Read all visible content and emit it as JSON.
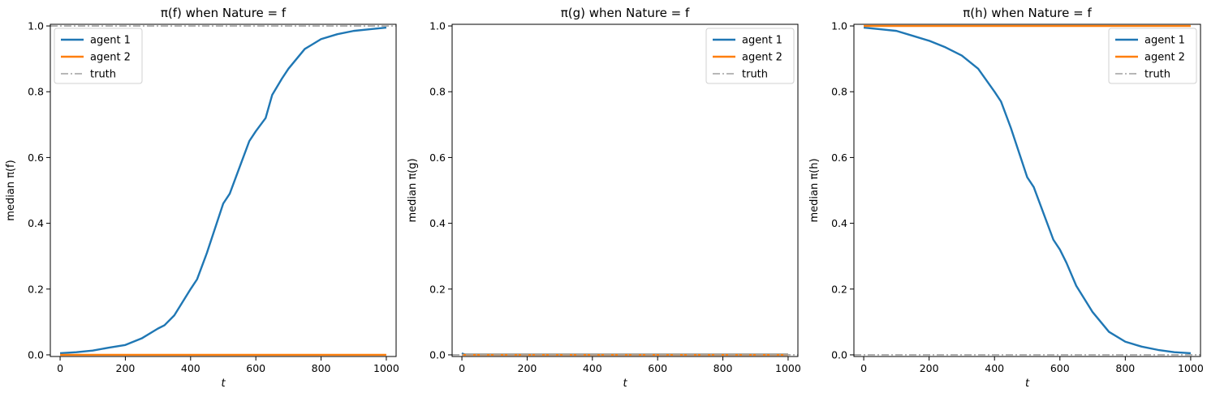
{
  "colors": {
    "agent1": "#1f77b4",
    "agent2": "#ff7f0e",
    "truth": "#a0a0a0"
  },
  "chart_data": [
    {
      "type": "line",
      "title": "π(f) when Nature = f",
      "xlabel": "t",
      "ylabel": "median π(f)",
      "xlim": [
        -30,
        1030
      ],
      "ylim": [
        -0.005,
        1.005
      ],
      "xticks": [
        0,
        200,
        400,
        600,
        800,
        1000
      ],
      "yticks": [
        0.0,
        0.2,
        0.4,
        0.6,
        0.8,
        1.0
      ],
      "legend": "top-left",
      "grid": false,
      "series": [
        {
          "name": "agent 1",
          "style": "solid",
          "x": [
            0,
            50,
            100,
            150,
            200,
            250,
            300,
            320,
            350,
            400,
            420,
            450,
            480,
            500,
            520,
            550,
            580,
            600,
            630,
            650,
            680,
            700,
            750,
            800,
            850,
            900,
            950,
            1000
          ],
          "y": [
            0.005,
            0.008,
            0.013,
            0.022,
            0.03,
            0.05,
            0.08,
            0.09,
            0.12,
            0.2,
            0.23,
            0.31,
            0.4,
            0.46,
            0.49,
            0.57,
            0.65,
            0.68,
            0.72,
            0.79,
            0.84,
            0.87,
            0.93,
            0.96,
            0.975,
            0.985,
            0.99,
            0.995
          ]
        },
        {
          "name": "agent 2",
          "style": "solid",
          "x": [
            0,
            1000
          ],
          "y": [
            0.0,
            0.0
          ]
        },
        {
          "name": "truth",
          "style": "dashdot",
          "value": 1.0
        }
      ]
    },
    {
      "type": "line",
      "title": "π(g) when Nature = f",
      "xlabel": "t",
      "ylabel": "median π(g)",
      "xlim": [
        -30,
        1030
      ],
      "ylim": [
        -0.005,
        1.005
      ],
      "xticks": [
        0,
        200,
        400,
        600,
        800,
        1000
      ],
      "yticks": [
        0.0,
        0.2,
        0.4,
        0.6,
        0.8,
        1.0
      ],
      "legend": "top-right",
      "grid": false,
      "series": [
        {
          "name": "agent 1",
          "style": "solid",
          "x": [
            0,
            5,
            10,
            1000
          ],
          "y": [
            0.005,
            0.002,
            0.001,
            0.001
          ]
        },
        {
          "name": "agent 2",
          "style": "solid",
          "x": [
            0,
            1000
          ],
          "y": [
            0.0,
            0.0
          ]
        },
        {
          "name": "truth",
          "style": "dashdot",
          "value": 0.0
        }
      ]
    },
    {
      "type": "line",
      "title": "π(h) when Nature = f",
      "xlabel": "t",
      "ylabel": "median π(h)",
      "xlim": [
        -30,
        1030
      ],
      "ylim": [
        -0.005,
        1.005
      ],
      "xticks": [
        0,
        200,
        400,
        600,
        800,
        1000
      ],
      "yticks": [
        0.0,
        0.2,
        0.4,
        0.6,
        0.8,
        1.0
      ],
      "legend": "top-right",
      "grid": false,
      "series": [
        {
          "name": "agent 1",
          "style": "solid",
          "x": [
            0,
            50,
            100,
            150,
            200,
            250,
            300,
            350,
            400,
            420,
            450,
            480,
            500,
            520,
            550,
            580,
            600,
            620,
            650,
            700,
            750,
            800,
            850,
            900,
            950,
            1000
          ],
          "y": [
            0.995,
            0.99,
            0.985,
            0.97,
            0.955,
            0.935,
            0.91,
            0.87,
            0.8,
            0.77,
            0.69,
            0.6,
            0.54,
            0.51,
            0.43,
            0.35,
            0.32,
            0.28,
            0.21,
            0.13,
            0.07,
            0.04,
            0.025,
            0.015,
            0.008,
            0.005
          ]
        },
        {
          "name": "agent 2",
          "style": "solid",
          "x": [
            0,
            1000
          ],
          "y": [
            1.0,
            1.0
          ]
        },
        {
          "name": "truth",
          "style": "dashdot",
          "value": 0.0
        }
      ]
    }
  ]
}
